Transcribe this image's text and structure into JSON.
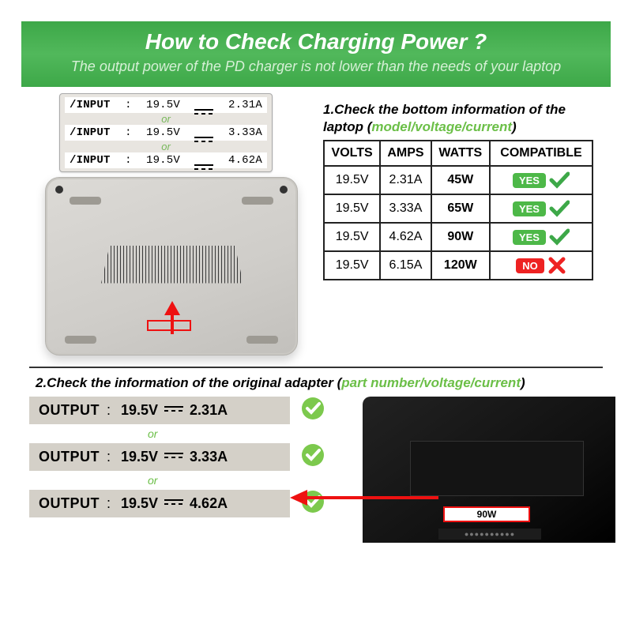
{
  "header": {
    "title": "How to Check Charging Power ?",
    "subtitle": "The output power of the PD charger is not lower than the needs of your laptop"
  },
  "colors": {
    "header_bg": "#4db848",
    "accent_green": "#6bbf47",
    "badge_yes": "#4db848",
    "badge_no": "#e22222",
    "highlight_red": "#e11"
  },
  "callout": {
    "rows": [
      {
        "label": "/INPUT",
        "volts": "19.5V",
        "amps": "2.31A"
      },
      {
        "label": "/INPUT",
        "volts": "19.5V",
        "amps": "3.33A"
      },
      {
        "label": "/INPUT",
        "volts": "19.5V",
        "amps": "4.62A"
      }
    ],
    "or": "or"
  },
  "step1": {
    "text_a": "1.Check the bottom information of the laptop (",
    "hint": "model/voltage/current",
    "text_b": ")"
  },
  "table": {
    "headers": [
      "VOLTS",
      "AMPS",
      "WATTS",
      "COMPATIBLE"
    ],
    "rows": [
      {
        "volts": "19.5V",
        "amps": "2.31A",
        "watts": "45W",
        "compatible": true,
        "label": "YES"
      },
      {
        "volts": "19.5V",
        "amps": "3.33A",
        "watts": "65W",
        "compatible": true,
        "label": "YES"
      },
      {
        "volts": "19.5V",
        "amps": "4.62A",
        "watts": "90W",
        "compatible": true,
        "label": "YES"
      },
      {
        "volts": "19.5V",
        "amps": "6.15A",
        "watts": "120W",
        "compatible": false,
        "label": "NO"
      }
    ]
  },
  "step2": {
    "text_a": "2.Check the information of the original adapter (",
    "hint": "part number/voltage/current",
    "text_b": ")"
  },
  "outputs": {
    "rows": [
      {
        "key": "OUTPUT",
        "volts": "19.5V",
        "amps": "2.31A"
      },
      {
        "key": "OUTPUT",
        "volts": "19.5V",
        "amps": "3.33A"
      },
      {
        "key": "OUTPUT",
        "volts": "19.5V",
        "amps": "4.62A"
      }
    ],
    "or": "or"
  },
  "adapter": {
    "watt_label": "90W"
  }
}
